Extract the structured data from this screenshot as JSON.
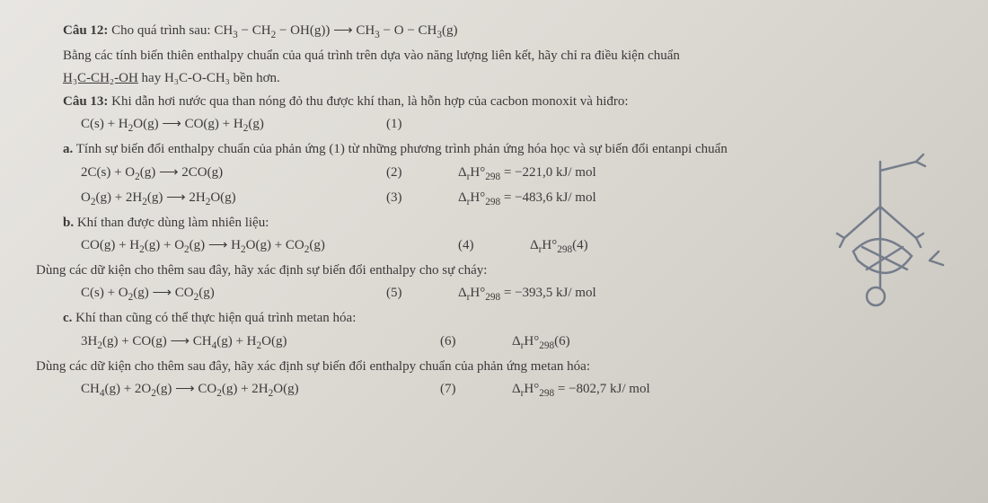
{
  "q12": {
    "title": "Câu 12:",
    "text": "Cho quá trình sau:",
    "equation_html": "CH<sub>3</sub> − CH<sub>2</sub> − OH(g)) ⟶ CH<sub>3</sub> − O − CH<sub>3</sub>(g)",
    "desc1": "Bằng các tính biến thiên enthalpy chuẩn của quá trình trên dựa vào năng lượng liên kết, hãy chỉ ra điều kiện chuẩn",
    "desc2_a": "H₃C-CH₂-OH",
    "desc2_b": " hay H₃C-O-CH₃ bền hơn."
  },
  "q13": {
    "title": "Câu 13:",
    "text": "Khi dẫn hơi nước qua than nóng đỏ thu được khí than, là hỗn hợp của cacbon monoxit và hiđro:",
    "eq1_html": "C(s) + H<sub>2</sub>O(g) ⟶ CO(g) + H<sub>2</sub>(g)",
    "eq1_num": "(1)",
    "a": {
      "label": "a.",
      "text": "Tính sự biến đổi enthalpy chuẩn của phản ứng (1) từ những phương trình phản ứng hóa học và sự biến đổi entanpi chuẩn",
      "eq2_l_html": "2C(s) + O<sub>2</sub>(g) ⟶ 2CO(g)",
      "eq2_n": "(2)",
      "eq2_r_html": "Δ<sub>r</sub>H°<sub>298</sub> = −221,0 kJ/ mol",
      "eq3_l_html": "O<sub>2</sub>(g) + 2H<sub>2</sub>(g) ⟶ 2H<sub>2</sub>O(g)",
      "eq3_n": "(3)",
      "eq3_r_html": "Δ<sub>r</sub>H°<sub>298</sub> = −483,6 kJ/ mol"
    },
    "b": {
      "label": "b.",
      "text": "Khí than được dùng làm nhiên liệu:",
      "eq4_l_html": "CO(g) + H<sub>2</sub>(g) + O<sub>2</sub>(g) ⟶ H<sub>2</sub>O(g) + CO<sub>2</sub>(g)",
      "eq4_n": "(4)",
      "eq4_r_html": "Δ<sub>r</sub>H°<sub>298</sub>(4)",
      "desc": "Dùng các dữ kiện cho thêm sau đây, hãy xác định sự biến đổi enthalpy cho sự cháy:",
      "eq5_l_html": "C(s) + O<sub>2</sub>(g) ⟶ CO<sub>2</sub>(g)",
      "eq5_n": "(5)",
      "eq5_r_html": "Δ<sub>r</sub>H°<sub>298</sub> = −393,5 kJ/ mol"
    },
    "c": {
      "label": "c.",
      "text": "Khí than cũng có thể thực hiện quá trình metan hóa:",
      "eq6_l_html": "3H<sub>2</sub>(g) + CO(g) ⟶ CH<sub>4</sub>(g) + H<sub>2</sub>O(g)",
      "eq6_n": "(6)",
      "eq6_r_html": "Δ<sub>r</sub>H°<sub>298</sub>(6)",
      "desc": "Dùng các dữ kiện cho thêm sau đây, hãy xác định sự biến đổi enthalpy chuẩn của phản ứng metan hóa:",
      "eq7_l_html": "CH<sub>4</sub>(g) + 2O<sub>2</sub>(g) ⟶ CO<sub>2</sub>(g) + 2H<sub>2</sub>O(g)",
      "eq7_n": "(7)",
      "eq7_r_html": "Δ<sub>r</sub>H°<sub>298</sub> = −802,7 kJ/ mol"
    }
  },
  "style": {
    "scribble_color": "#2a3a5a"
  }
}
